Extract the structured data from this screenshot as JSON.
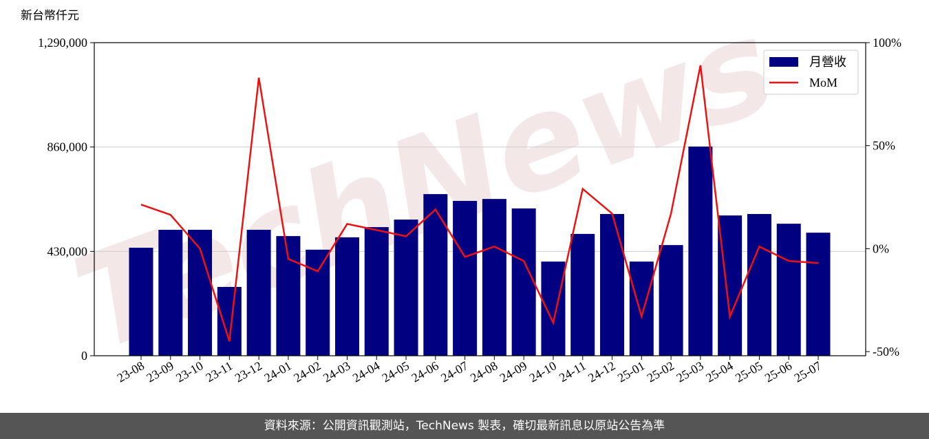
{
  "chart_data": {
    "type": "bar-line",
    "y_axis_label": "新台幣仟元",
    "watermark": "TechNews",
    "footer": "資料來源：公開資訊觀測站，TechNews 製表，確切最新訊息以原站公告為準",
    "categories": [
      "23-08",
      "23-09",
      "23-10",
      "23-11",
      "23-12",
      "24-01",
      "24-02",
      "24-03",
      "24-04",
      "24-05",
      "24-06",
      "24-07",
      "24-08",
      "24-09",
      "24-10",
      "24-11",
      "24-12",
      "25-01",
      "25-02",
      "25-03",
      "25-04",
      "25-05",
      "25-06",
      "25-07"
    ],
    "series": [
      {
        "name": "月營收",
        "type": "bar",
        "color": "#000080",
        "values": [
          445000,
          519000,
          519000,
          283500,
          519000,
          493000,
          437000,
          488000,
          530000,
          561000,
          666000,
          638000,
          646000,
          607000,
          388000,
          502000,
          584000,
          388000,
          456000,
          862000,
          578000,
          584000,
          544000,
          507000
        ]
      },
      {
        "name": "MoM",
        "type": "line",
        "color": "#ee1111",
        "axis": "y2",
        "values": [
          21.4,
          16.4,
          0,
          -45,
          83,
          -5,
          -11,
          12,
          9,
          6,
          19,
          -4,
          1,
          -6,
          -36,
          29,
          17,
          -33,
          17,
          89,
          -33,
          1,
          -6,
          -7
        ]
      }
    ],
    "ylim": [
      0,
      1290000
    ],
    "yticks": [
      0,
      {
        "value": 430000,
        "label": "430,000"
      },
      {
        "value": 860000,
        "label": "860,000"
      },
      {
        "value": 1290000,
        "label": "1,290,000"
      }
    ],
    "y2lim": [
      -52,
      100
    ],
    "y2ticks": [
      {
        "value": -50,
        "label": "-50%"
      },
      {
        "value": 0,
        "label": "0%"
      },
      {
        "value": 50,
        "label": "50%"
      },
      {
        "value": 100,
        "label": "100%"
      }
    ],
    "grid": true,
    "legend": "top-right"
  }
}
